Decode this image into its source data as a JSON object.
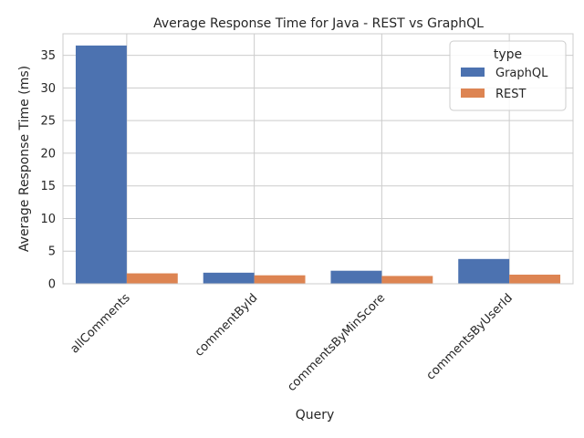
{
  "chart_data": {
    "type": "bar",
    "title": "Average Response Time for Java - REST vs GraphQL",
    "xlabel": "Query",
    "ylabel": "Average Response Time (ms)",
    "categories": [
      "allComments",
      "commentById",
      "commentsByMinScore",
      "commentsByUserId"
    ],
    "series": [
      {
        "name": "GraphQL",
        "color": "#4c72b0",
        "values": [
          36.5,
          1.7,
          2.0,
          3.8
        ]
      },
      {
        "name": "REST",
        "color": "#dd8452",
        "values": [
          1.6,
          1.3,
          1.2,
          1.4
        ]
      }
    ],
    "ylim": [
      0,
      38.3
    ],
    "yticks": [
      0,
      5,
      10,
      15,
      20,
      25,
      30,
      35
    ],
    "grid": true,
    "legend": {
      "title": "type",
      "placement": "top-right"
    }
  }
}
